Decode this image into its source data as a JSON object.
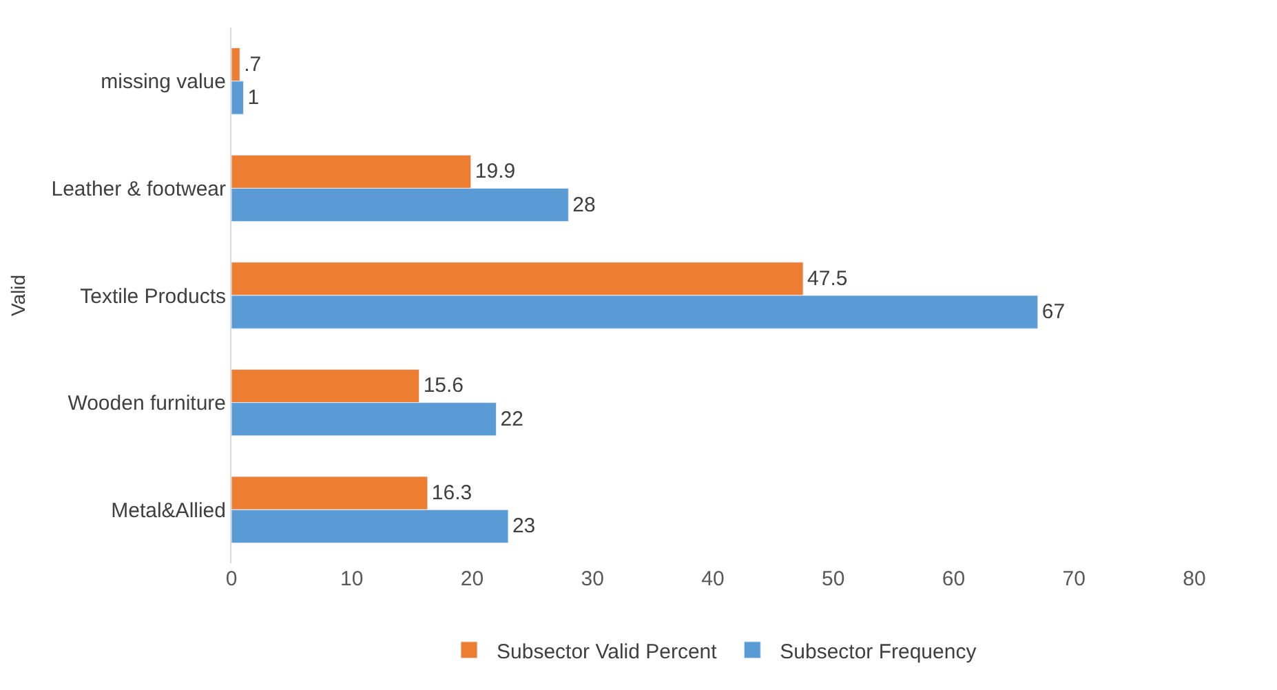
{
  "chart_data": {
    "type": "bar",
    "orientation": "horizontal",
    "ylabel": "Valid",
    "categories": [
      "missing value",
      "Leather & footwear",
      "Textile Products",
      "Wooden furniture",
      "Metal&Allied"
    ],
    "series": [
      {
        "name": "Subsector Valid Percent",
        "color": "#ed7d31",
        "values": [
          0.7,
          19.9,
          47.5,
          15.6,
          16.3
        ],
        "value_labels": [
          ".7",
          "19.9",
          "47.5",
          "15.6",
          "16.3"
        ]
      },
      {
        "name": "Subsector Frequency",
        "color": "#5b9bd5",
        "values": [
          1,
          28,
          67,
          22,
          23
        ],
        "value_labels": [
          "1",
          "28",
          "67",
          "22",
          "23"
        ]
      }
    ],
    "xlim": [
      0,
      80
    ],
    "xticks": [
      0,
      10,
      20,
      30,
      40,
      50,
      60,
      70,
      80
    ],
    "legend": "bottom"
  }
}
